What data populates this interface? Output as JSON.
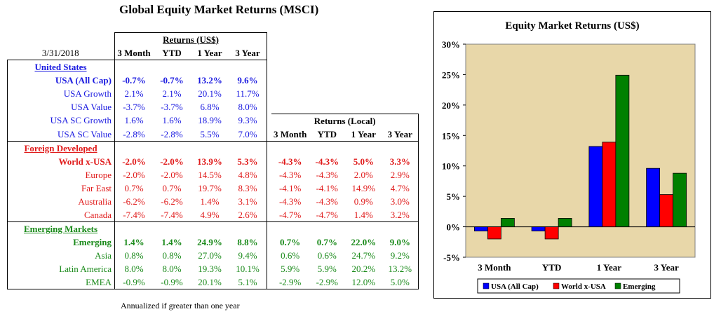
{
  "title": "Global Equity Market Returns (MSCI)",
  "date": "3/31/2018",
  "usd_header": "Returns (US$)",
  "local_header": "Returns (Local)",
  "periods": [
    "3 Month",
    "YTD",
    "1 Year",
    "3 Year"
  ],
  "note": "Annualized if greater than one year",
  "sections": [
    {
      "name": "United States",
      "color": "#1a1ae0",
      "rows": [
        {
          "label": "USA (All Cap)",
          "bold": true,
          "usd": [
            "-0.7%",
            "-0.7%",
            "13.2%",
            "9.6%"
          ],
          "local": null
        },
        {
          "label": "USA Growth",
          "bold": false,
          "usd": [
            "2.1%",
            "2.1%",
            "20.1%",
            "11.7%"
          ],
          "local": null
        },
        {
          "label": "USA Value",
          "bold": false,
          "usd": [
            "-3.7%",
            "-3.7%",
            "6.8%",
            "8.0%"
          ],
          "local": null
        },
        {
          "label": "USA SC Growth",
          "bold": false,
          "usd": [
            "1.6%",
            "1.6%",
            "18.9%",
            "9.3%"
          ],
          "local": null
        },
        {
          "label": "USA SC Value",
          "bold": false,
          "usd": [
            "-2.8%",
            "-2.8%",
            "5.5%",
            "7.0%"
          ],
          "local": null
        }
      ]
    },
    {
      "name": "Foreign Developed",
      "color": "#e01a1a",
      "rows": [
        {
          "label": "World x-USA",
          "bold": true,
          "usd": [
            "-2.0%",
            "-2.0%",
            "13.9%",
            "5.3%"
          ],
          "local": [
            "-4.3%",
            "-4.3%",
            "5.0%",
            "3.3%"
          ]
        },
        {
          "label": "Europe",
          "bold": false,
          "usd": [
            "-2.0%",
            "-2.0%",
            "14.5%",
            "4.8%"
          ],
          "local": [
            "-4.3%",
            "-4.3%",
            "2.0%",
            "2.9%"
          ]
        },
        {
          "label": "Far East",
          "bold": false,
          "usd": [
            "0.7%",
            "0.7%",
            "19.7%",
            "8.3%"
          ],
          "local": [
            "-4.1%",
            "-4.1%",
            "14.9%",
            "4.7%"
          ]
        },
        {
          "label": "Australia",
          "bold": false,
          "usd": [
            "-6.2%",
            "-6.2%",
            "1.4%",
            "3.1%"
          ],
          "local": [
            "-4.3%",
            "-4.3%",
            "0.9%",
            "3.0%"
          ]
        },
        {
          "label": "Canada",
          "bold": false,
          "usd": [
            "-7.4%",
            "-7.4%",
            "4.9%",
            "2.6%"
          ],
          "local": [
            "-4.7%",
            "-4.7%",
            "1.4%",
            "3.2%"
          ]
        }
      ]
    },
    {
      "name": "Emerging Markets",
      "color": "#1a8a1a",
      "rows": [
        {
          "label": "Emerging",
          "bold": true,
          "usd": [
            "1.4%",
            "1.4%",
            "24.9%",
            "8.8%"
          ],
          "local": [
            "0.7%",
            "0.7%",
            "22.0%",
            "9.0%"
          ]
        },
        {
          "label": "Asia",
          "bold": false,
          "usd": [
            "0.8%",
            "0.8%",
            "27.0%",
            "9.4%"
          ],
          "local": [
            "0.6%",
            "0.6%",
            "24.7%",
            "9.2%"
          ]
        },
        {
          "label": "Latin America",
          "bold": false,
          "usd": [
            "8.0%",
            "8.0%",
            "19.3%",
            "10.1%"
          ],
          "local": [
            "5.9%",
            "5.9%",
            "20.2%",
            "13.2%"
          ]
        },
        {
          "label": "EMEA",
          "bold": false,
          "usd": [
            "-0.9%",
            "-0.9%",
            "20.1%",
            "5.1%"
          ],
          "local": [
            "-2.9%",
            "-2.9%",
            "12.0%",
            "5.0%"
          ]
        }
      ]
    }
  ],
  "chart_data": {
    "type": "bar",
    "title": "Equity Market Returns (US$)",
    "categories": [
      "3 Month",
      "YTD",
      "1 Year",
      "3 Year"
    ],
    "series": [
      {
        "name": "USA (All Cap)",
        "color": "#0000ff",
        "values": [
          -0.7,
          -0.7,
          13.2,
          9.6
        ]
      },
      {
        "name": "World x-USA",
        "color": "#ff0000",
        "values": [
          -2.0,
          -2.0,
          13.9,
          5.3
        ]
      },
      {
        "name": "Emerging",
        "color": "#008000",
        "values": [
          1.4,
          1.4,
          24.9,
          8.8
        ]
      }
    ],
    "ylim": [
      -5,
      30
    ],
    "yticks": [
      "-5%",
      "0%",
      "5%",
      "10%",
      "15%",
      "20%",
      "25%",
      "30%"
    ],
    "plot_background": "#e8d7a9",
    "grid": false,
    "legend_position": "bottom"
  }
}
